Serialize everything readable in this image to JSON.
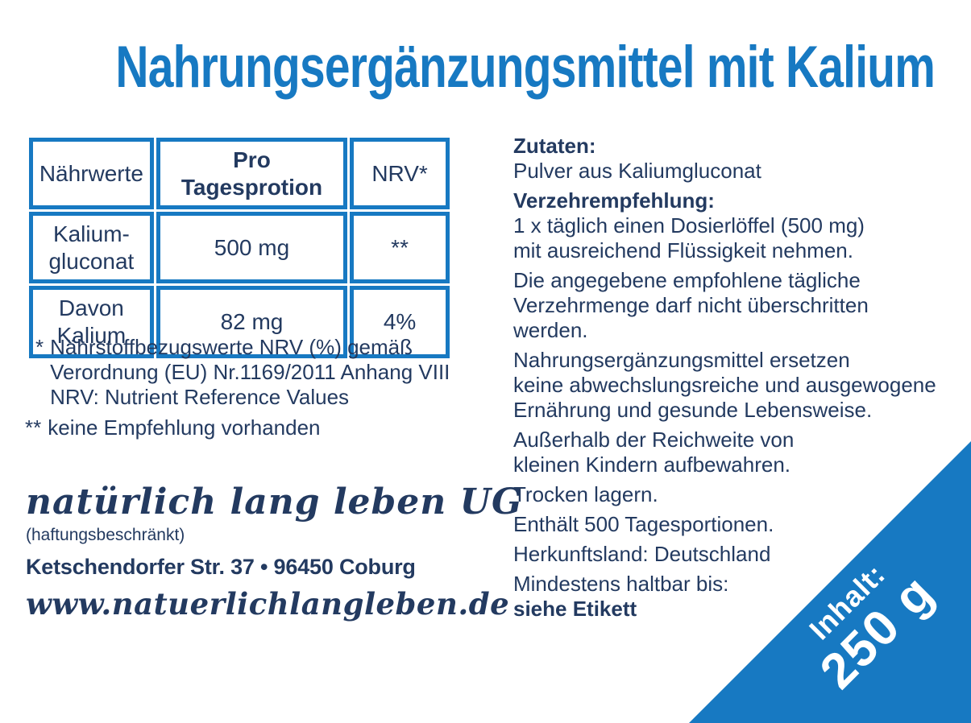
{
  "page": {
    "title": "Nahrungsergänzungsmittel mit Kalium"
  },
  "colors": {
    "accent_blue": "#1779C2",
    "navy_text": "#233A60"
  },
  "nutrition_table": {
    "headers": [
      "Nährwerte",
      "Pro\nTagesprotion",
      "NRV*"
    ],
    "rows": [
      [
        "Kalium-\ngluconat",
        "500 mg",
        "**"
      ],
      [
        "Davon\nKalium",
        "82 mg",
        "4%"
      ]
    ]
  },
  "footnotes": {
    "nrv_marker": "*",
    "nrv_text": "Nährstoffbezugswerte NRV (%) gemäß\nVerordnung (EU) Nr.1169/2011 Anhang VIII\nNRV: Nutrient Reference Values",
    "no_reco_marker": "**",
    "no_reco_text": "keine Empfehlung vorhanden"
  },
  "company": {
    "name": "natürlich lang leben UG",
    "legal_suffix": "(haftungsbeschränkt)",
    "address": "Ketschendorfer Str. 37 • 96450 Coburg",
    "website": "www.natuerlichlangleben.de"
  },
  "info": {
    "ingredients_heading": "Zutaten:",
    "ingredients_body": "Pulver aus Kaliumgluconat",
    "dosage_heading": "Verzehrempfehlung:",
    "dosage_body": "1 x täglich einen Dosierlöffel (500 mg)\nmit ausreichend Flüssigkeit nehmen.",
    "warning_max_intake": "Die angegebene empfohlene tägliche\nVerzehrmenge darf nicht überschritten\nwerden.",
    "warning_substitute": "Nahrungsergänzungsmittel ersetzen\nkeine abwechslungsreiche und ausgewogene\nErnährung und gesunde Lebensweise.",
    "warning_children": "Außerhalb der Reichweite von\nkleinen Kindern aufbewahren.",
    "storage": "Trocken lagern.",
    "servings": "Enthält 500 Tagesportionen.",
    "origin": "Herkunftsland: Deutschland",
    "best_before_label": "Mindestens haltbar bis:",
    "best_before_value": "siehe Etikett"
  },
  "content_badge": {
    "label": "Inhalt:",
    "value": "250 g"
  }
}
